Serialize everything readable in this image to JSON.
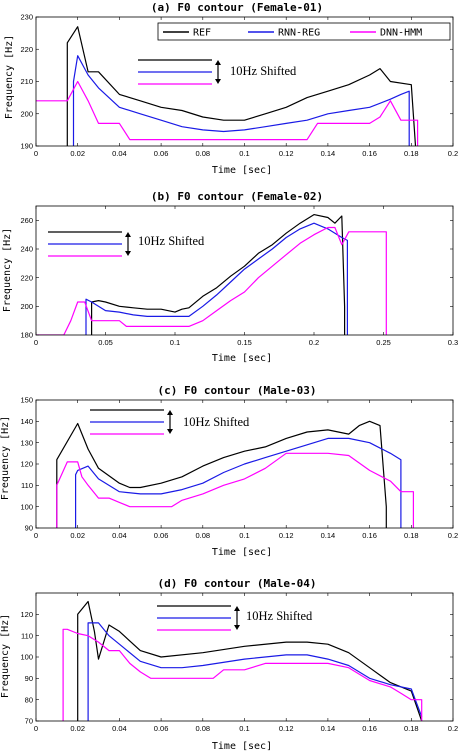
{
  "colors": {
    "REF": "#000000",
    "RNN-REG": "#1a1ae6",
    "DNN-HMM": "#ff00ff"
  },
  "legend": [
    "REF",
    "RNN-REG",
    "DNN-HMM"
  ],
  "chart_data": [
    {
      "type": "line",
      "title": "(a) F0 contour (Female-01)",
      "xlabel": "Time [sec]",
      "ylabel": "Frequency [Hz]",
      "xlim": [
        0,
        0.2
      ],
      "ylim": [
        190,
        230
      ],
      "xticks": [
        0,
        0.02,
        0.04,
        0.06,
        0.08,
        0.1,
        0.12,
        0.14,
        0.16,
        0.18,
        0.2
      ],
      "xtick_labels": [
        "0",
        "0.02",
        "0.04",
        "0.06",
        "0.08",
        "0.1",
        "0.12",
        "0.14",
        "0.16",
        "0.18",
        "0.2"
      ],
      "yticks": [
        190,
        200,
        210,
        220,
        230
      ],
      "ytick_labels": [
        "190",
        "200",
        "210",
        "220",
        "230"
      ],
      "legend_placement": "top-right",
      "annotation": "10Hz Shifted",
      "series": [
        {
          "name": "REF",
          "x": [
            0.015,
            0.015,
            0.02,
            0.025,
            0.03,
            0.04,
            0.05,
            0.06,
            0.07,
            0.08,
            0.09,
            0.095,
            0.1,
            0.11,
            0.12,
            0.13,
            0.14,
            0.15,
            0.16,
            0.165,
            0.17,
            0.18,
            0.182
          ],
          "y": [
            190,
            222,
            227,
            213,
            213,
            206,
            204,
            202,
            201,
            199,
            198,
            198,
            198,
            200,
            202,
            205,
            207,
            209,
            212,
            214,
            210,
            209,
            190
          ]
        },
        {
          "name": "RNN-REG",
          "x": [
            0.018,
            0.018,
            0.02,
            0.025,
            0.03,
            0.04,
            0.05,
            0.06,
            0.07,
            0.08,
            0.09,
            0.1,
            0.11,
            0.12,
            0.13,
            0.14,
            0.15,
            0.16,
            0.17,
            0.175,
            0.179,
            0.179
          ],
          "y": [
            190,
            210,
            218,
            212,
            208,
            202,
            200,
            198,
            196,
            195,
            194.5,
            195,
            196,
            197,
            198,
            200,
            201,
            202,
            204.5,
            206,
            207,
            190
          ]
        },
        {
          "name": "DNN-HMM",
          "x": [
            0,
            0.015,
            0.02,
            0.025,
            0.03,
            0.035,
            0.04,
            0.045,
            0.05,
            0.06,
            0.07,
            0.08,
            0.09,
            0.1,
            0.11,
            0.12,
            0.13,
            0.135,
            0.14,
            0.15,
            0.16,
            0.165,
            0.17,
            0.175,
            0.18,
            0.183,
            0.183
          ],
          "y": [
            204,
            204,
            210,
            204,
            197,
            197,
            197,
            192,
            192,
            192,
            192,
            192,
            192,
            192,
            192,
            192,
            192,
            197,
            197,
            197,
            197,
            199,
            204,
            198,
            198,
            198,
            190
          ]
        }
      ]
    },
    {
      "type": "line",
      "title": "(b) F0 contour (Female-02)",
      "xlabel": "Time [sec]",
      "ylabel": "Frequency [Hz]",
      "xlim": [
        0,
        0.3
      ],
      "ylim": [
        180,
        270
      ],
      "xticks": [
        0,
        0.05,
        0.1,
        0.15,
        0.2,
        0.25,
        0.3
      ],
      "xtick_labels": [
        "0",
        "0.05",
        "0.1",
        "0.15",
        "0.2",
        "0.25",
        "0.3"
      ],
      "yticks": [
        180,
        200,
        220,
        240,
        260
      ],
      "ytick_labels": [
        "180",
        "200",
        "220",
        "240",
        "260"
      ],
      "annotation": "10Hz Shifted",
      "series": [
        {
          "name": "REF",
          "x": [
            0.04,
            0.04,
            0.045,
            0.05,
            0.06,
            0.07,
            0.08,
            0.09,
            0.1,
            0.105,
            0.11,
            0.12,
            0.13,
            0.14,
            0.15,
            0.16,
            0.17,
            0.18,
            0.19,
            0.2,
            0.21,
            0.215,
            0.22,
            0.222,
            0.222
          ],
          "y": [
            180,
            203,
            204,
            203,
            200,
            199,
            198,
            198,
            196,
            198,
            199,
            207,
            213,
            221,
            228,
            237,
            243,
            251,
            258,
            264,
            262,
            258,
            263,
            200,
            180
          ]
        },
        {
          "name": "RNN-REG",
          "x": [
            0.036,
            0.036,
            0.04,
            0.05,
            0.06,
            0.07,
            0.08,
            0.09,
            0.1,
            0.11,
            0.12,
            0.13,
            0.14,
            0.15,
            0.16,
            0.17,
            0.18,
            0.19,
            0.2,
            0.205,
            0.21,
            0.22,
            0.224,
            0.224
          ],
          "y": [
            180,
            205,
            203,
            197,
            196,
            194,
            193,
            193,
            193,
            193,
            200,
            208,
            217,
            226,
            233,
            240,
            248,
            254,
            258,
            256,
            254,
            248,
            246,
            180
          ]
        },
        {
          "name": "DNN-HMM",
          "x": [
            0,
            0.02,
            0.025,
            0.03,
            0.035,
            0.04,
            0.05,
            0.06,
            0.065,
            0.07,
            0.08,
            0.09,
            0.1,
            0.11,
            0.12,
            0.13,
            0.14,
            0.15,
            0.16,
            0.17,
            0.18,
            0.19,
            0.2,
            0.21,
            0.215,
            0.22,
            0.225,
            0.25,
            0.252,
            0.252
          ],
          "y": [
            180,
            180,
            190,
            203,
            203,
            190,
            190,
            190,
            186,
            186,
            186,
            186,
            186,
            186,
            190,
            197,
            204,
            210,
            220,
            228,
            236,
            244,
            250,
            255,
            255,
            243,
            252,
            252,
            252,
            180
          ]
        }
      ]
    },
    {
      "type": "line",
      "title": "(c) F0 contour (Male-03)",
      "xlabel": "Time [sec]",
      "ylabel": "Frequency [Hz]",
      "xlim": [
        0,
        0.2
      ],
      "ylim": [
        90,
        150
      ],
      "xticks": [
        0,
        0.02,
        0.04,
        0.06,
        0.08,
        0.1,
        0.12,
        0.14,
        0.16,
        0.18,
        0.2
      ],
      "xtick_labels": [
        "0",
        "0.02",
        "0.04",
        "0.06",
        "0.08",
        "0.1",
        "0.12",
        "0.14",
        "0.16",
        "0.18",
        "0.2"
      ],
      "yticks": [
        90,
        100,
        110,
        120,
        130,
        140,
        150
      ],
      "ytick_labels": [
        "90",
        "100",
        "110",
        "120",
        "130",
        "140",
        "150"
      ],
      "annotation": "10Hz Shifted",
      "series": [
        {
          "name": "REF",
          "x": [
            0.01,
            0.01,
            0.02,
            0.025,
            0.03,
            0.04,
            0.045,
            0.05,
            0.06,
            0.07,
            0.08,
            0.09,
            0.1,
            0.11,
            0.12,
            0.13,
            0.14,
            0.15,
            0.155,
            0.16,
            0.165,
            0.168,
            0.168
          ],
          "y": [
            90,
            122,
            139,
            127,
            118,
            111,
            109,
            109,
            111,
            114,
            119,
            123,
            126,
            128,
            132,
            135,
            136,
            134,
            138,
            140,
            138,
            100,
            90
          ]
        },
        {
          "name": "RNN-REG",
          "x": [
            0.019,
            0.019,
            0.02,
            0.025,
            0.03,
            0.04,
            0.05,
            0.06,
            0.07,
            0.08,
            0.09,
            0.1,
            0.11,
            0.12,
            0.13,
            0.14,
            0.15,
            0.16,
            0.17,
            0.175,
            0.175
          ],
          "y": [
            90,
            115,
            117,
            119,
            113,
            107,
            106,
            106,
            108,
            111,
            116,
            120,
            123,
            126,
            129,
            132,
            132,
            130,
            125,
            122,
            90
          ]
        },
        {
          "name": "DNN-HMM",
          "x": [
            0.01,
            0.01,
            0.015,
            0.02,
            0.022,
            0.025,
            0.03,
            0.035,
            0.04,
            0.045,
            0.05,
            0.06,
            0.065,
            0.07,
            0.08,
            0.09,
            0.1,
            0.11,
            0.12,
            0.13,
            0.14,
            0.15,
            0.16,
            0.17,
            0.175,
            0.18,
            0.181,
            0.181
          ],
          "y": [
            90,
            110,
            121,
            121,
            114,
            110,
            104,
            104,
            102,
            100,
            100,
            100,
            100,
            103,
            106,
            110,
            113,
            118,
            125,
            125,
            125,
            124,
            117,
            112,
            107,
            107,
            107,
            90
          ]
        }
      ]
    },
    {
      "type": "line",
      "title": "(d) F0 contour (Male-04)",
      "xlabel": "Time [sec]",
      "ylabel": "Frequency [Hz]",
      "xlim": [
        0,
        0.2
      ],
      "ylim": [
        70,
        130
      ],
      "xticks": [
        0,
        0.02,
        0.04,
        0.06,
        0.08,
        0.1,
        0.12,
        0.14,
        0.16,
        0.18,
        0.2
      ],
      "xtick_labels": [
        "0",
        "0.02",
        "0.04",
        "0.06",
        "0.08",
        "0.1",
        "0.12",
        "0.14",
        "0.16",
        "0.18",
        "0.2"
      ],
      "yticks": [
        70,
        80,
        90,
        100,
        110,
        120
      ],
      "ytick_labels": [
        "70",
        "80",
        "90",
        "100",
        "110",
        "120"
      ],
      "annotation": "10Hz Shifted",
      "series": [
        {
          "name": "REF",
          "x": [
            0.02,
            0.02,
            0.025,
            0.028,
            0.03,
            0.035,
            0.04,
            0.05,
            0.06,
            0.08,
            0.1,
            0.12,
            0.13,
            0.14,
            0.15,
            0.16,
            0.17,
            0.18,
            0.185
          ],
          "y": [
            70,
            120,
            126,
            112,
            99,
            115,
            112,
            103,
            100,
            102,
            105,
            107,
            107,
            106,
            102,
            95,
            88,
            84,
            70
          ]
        },
        {
          "name": "RNN-REG",
          "x": [
            0.025,
            0.025,
            0.03,
            0.035,
            0.04,
            0.05,
            0.06,
            0.07,
            0.08,
            0.1,
            0.12,
            0.13,
            0.14,
            0.15,
            0.16,
            0.17,
            0.18,
            0.185
          ],
          "y": [
            70,
            116,
            116,
            110,
            106,
            98,
            95,
            95,
            96,
            99,
            101,
            101,
            99,
            96,
            90,
            87,
            85,
            72
          ]
        },
        {
          "name": "DNN-HMM",
          "x": [
            0.013,
            0.013,
            0.015,
            0.02,
            0.025,
            0.03,
            0.035,
            0.04,
            0.045,
            0.05,
            0.055,
            0.06,
            0.07,
            0.08,
            0.085,
            0.09,
            0.1,
            0.11,
            0.12,
            0.13,
            0.14,
            0.15,
            0.16,
            0.17,
            0.175,
            0.18,
            0.185,
            0.185
          ],
          "y": [
            70,
            113,
            113,
            111,
            110,
            107,
            103,
            103,
            97,
            93,
            90,
            90,
            90,
            90,
            90,
            94,
            94,
            97,
            97,
            97,
            97,
            95,
            89,
            86,
            83,
            80,
            80,
            70
          ]
        }
      ]
    }
  ]
}
